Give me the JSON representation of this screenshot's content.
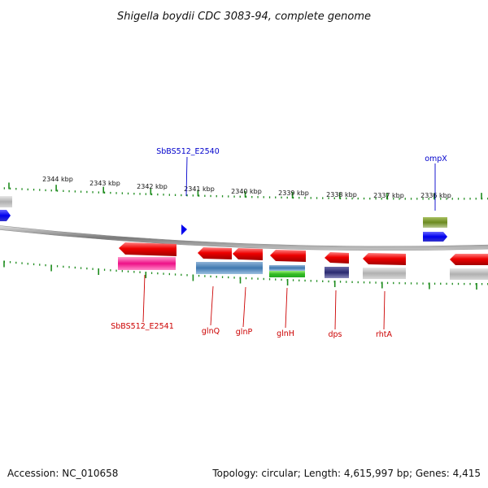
{
  "title": "Shigella boydii CDC 3083-94, complete genome",
  "footer": {
    "accession": "Accession: NC_010658",
    "summary": "Topology: circular; Length: 4,615,997 bp; Genes: 4,415"
  },
  "colors": {
    "tick": "#1e8c1e",
    "backbone": "#888888",
    "label_blue": "#0000cc",
    "label_red": "#cc0000"
  },
  "scale_labels": [
    "2344 kbp",
    "2343 kbp",
    "2342 kbp",
    "2341 kbp",
    "2340 kbp",
    "2339 kbp",
    "2338 kbp",
    "2337 kbp",
    "2336 kbp"
  ],
  "gene_labels": [
    {
      "id": "SbBS512_E2540",
      "strand": "top"
    },
    {
      "id": "ompX",
      "strand": "top"
    },
    {
      "id": "SbBS512_E2541",
      "strand": "bottom"
    },
    {
      "id": "glnQ",
      "strand": "bottom"
    },
    {
      "id": "glnP",
      "strand": "bottom"
    },
    {
      "id": "glnH",
      "strand": "bottom"
    },
    {
      "id": "dps",
      "strand": "bottom"
    },
    {
      "id": "rhtA",
      "strand": "bottom"
    }
  ]
}
